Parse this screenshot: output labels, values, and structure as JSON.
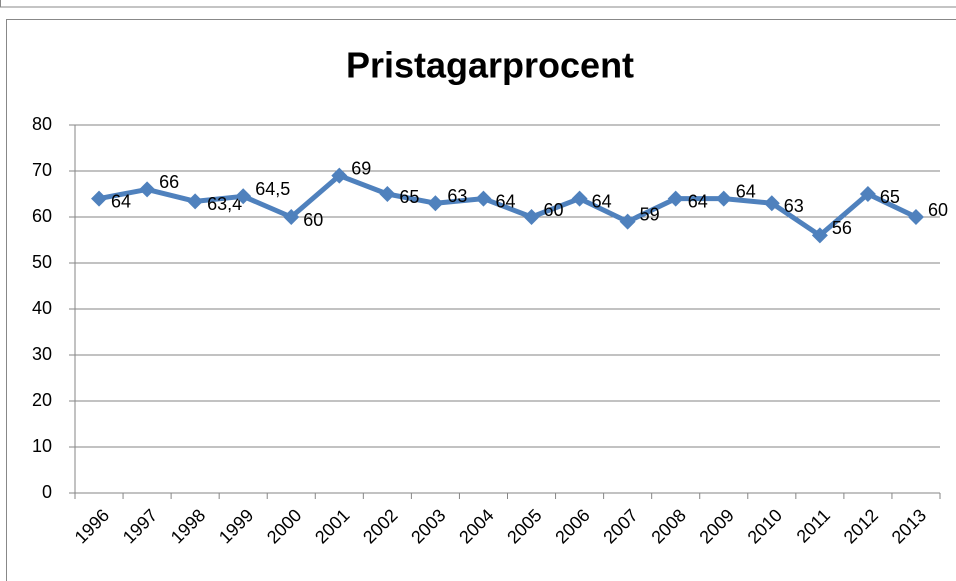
{
  "chart_data": {
    "type": "line",
    "title": "Pristagarprocent",
    "categories": [
      "1996",
      "1997",
      "1998",
      "1999",
      "2000",
      "2001",
      "2002",
      "2003",
      "2004",
      "2005",
      "2006",
      "2007",
      "2008",
      "2009",
      "2010",
      "2011",
      "2012",
      "2013"
    ],
    "series": [
      {
        "name": "Pristagarprocent",
        "color": "#4f81bd",
        "values": [
          64,
          66,
          63.4,
          64.5,
          60,
          69,
          65,
          63,
          64,
          60,
          64,
          59,
          64,
          64,
          63,
          56,
          65,
          60
        ],
        "value_labels": [
          "64",
          "66",
          "63,4",
          "64,5",
          "60",
          "69",
          "65",
          "63",
          "64",
          "60",
          "64",
          "59",
          "64",
          "64",
          "63",
          "56",
          "65",
          "60"
        ]
      }
    ],
    "ylim": [
      0,
      80
    ],
    "yticks": [
      0,
      10,
      20,
      30,
      40,
      50,
      60,
      70,
      80
    ],
    "grid": true
  }
}
